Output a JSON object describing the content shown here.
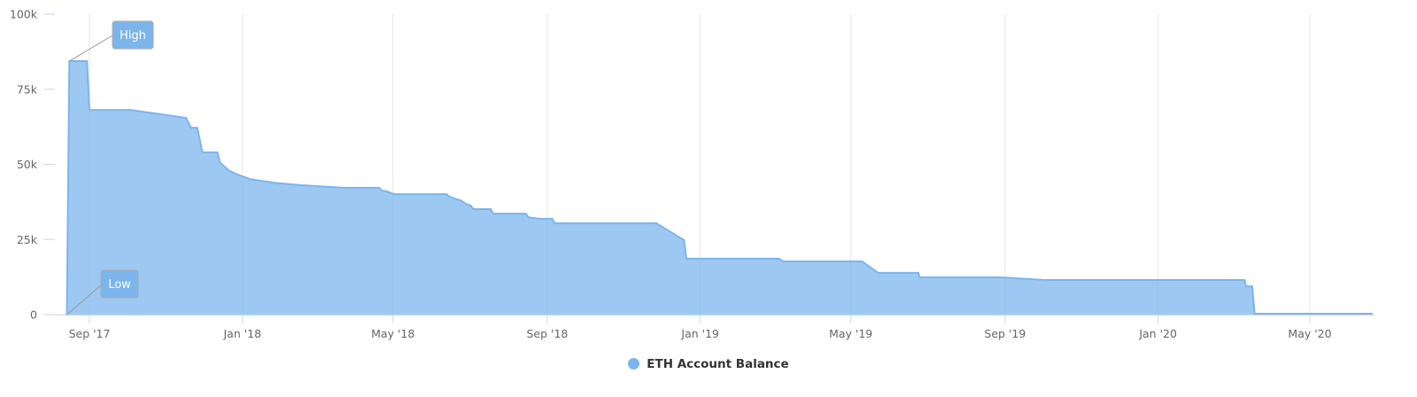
{
  "chart_data": {
    "type": "area",
    "title": "",
    "xlabel": "",
    "ylabel": "",
    "ylim": [
      0,
      100000
    ],
    "grid": {
      "x": true,
      "y": false
    },
    "legend_placement": "bottom-center",
    "y_ticks": [
      {
        "value": 0,
        "label": "0"
      },
      {
        "value": 25000,
        "label": "25k"
      },
      {
        "value": 50000,
        "label": "50k"
      },
      {
        "value": 75000,
        "label": "75k"
      },
      {
        "value": 100000,
        "label": "100k"
      }
    ],
    "x_ticks": [
      {
        "date": "2017-09-01",
        "label": "Sep '17"
      },
      {
        "date": "2018-01-01",
        "label": "Jan '18"
      },
      {
        "date": "2018-05-01",
        "label": "May '18"
      },
      {
        "date": "2018-09-01",
        "label": "Sep '18"
      },
      {
        "date": "2019-01-01",
        "label": "Jan '19"
      },
      {
        "date": "2019-05-01",
        "label": "May '19"
      },
      {
        "date": "2019-09-01",
        "label": "Sep '19"
      },
      {
        "date": "2020-01-01",
        "label": "Jan '20"
      },
      {
        "date": "2020-05-01",
        "label": "May '20"
      }
    ],
    "series": [
      {
        "name": "ETH Account Balance",
        "color": "#7cb5ec",
        "points": [
          [
            "2017-08-14",
            0
          ],
          [
            "2017-08-16",
            84400
          ],
          [
            "2017-08-30",
            84400
          ],
          [
            "2017-09-01",
            68100
          ],
          [
            "2017-10-04",
            68100
          ],
          [
            "2017-11-17",
            65500
          ],
          [
            "2017-11-21",
            62200
          ],
          [
            "2017-11-26",
            62200
          ],
          [
            "2017-11-30",
            54000
          ],
          [
            "2017-12-12",
            54000
          ],
          [
            "2017-12-14",
            50700
          ],
          [
            "2017-12-21",
            48000
          ],
          [
            "2017-12-28",
            46600
          ],
          [
            "2018-01-07",
            45100
          ],
          [
            "2018-01-26",
            43900
          ],
          [
            "2018-02-16",
            43100
          ],
          [
            "2018-03-23",
            42200
          ],
          [
            "2018-04-20",
            42200
          ],
          [
            "2018-04-22",
            41300
          ],
          [
            "2018-04-26",
            41000
          ],
          [
            "2018-05-02",
            40100
          ],
          [
            "2018-06-13",
            40100
          ],
          [
            "2018-06-15",
            39200
          ],
          [
            "2018-06-24",
            38000
          ],
          [
            "2018-06-28",
            36900
          ],
          [
            "2018-07-02",
            36300
          ],
          [
            "2018-07-04",
            35100
          ],
          [
            "2018-07-18",
            35100
          ],
          [
            "2018-07-20",
            33600
          ],
          [
            "2018-08-15",
            33600
          ],
          [
            "2018-08-17",
            32400
          ],
          [
            "2018-08-26",
            31900
          ],
          [
            "2018-09-05",
            31900
          ],
          [
            "2018-09-07",
            30400
          ],
          [
            "2018-11-27",
            30400
          ],
          [
            "2018-12-19",
            24800
          ],
          [
            "2018-12-21",
            18600
          ],
          [
            "2019-03-05",
            18600
          ],
          [
            "2019-03-08",
            17700
          ],
          [
            "2019-05-10",
            17700
          ],
          [
            "2019-05-23",
            13900
          ],
          [
            "2019-06-24",
            13900
          ],
          [
            "2019-06-25",
            12400
          ],
          [
            "2019-08-29",
            12400
          ],
          [
            "2019-10-03",
            11500
          ],
          [
            "2020-03-10",
            11500
          ],
          [
            "2020-03-11",
            9400
          ],
          [
            "2020-03-16",
            9400
          ],
          [
            "2020-03-18",
            300
          ],
          [
            "2020-06-20",
            300
          ]
        ]
      }
    ],
    "annotations": [
      {
        "label": "High",
        "date": "2017-08-16",
        "value": 84400
      },
      {
        "label": "Low",
        "date": "2017-08-14",
        "value": 0
      }
    ]
  },
  "legend": {
    "label": "ETH Account Balance",
    "icon": "circle-marker"
  }
}
